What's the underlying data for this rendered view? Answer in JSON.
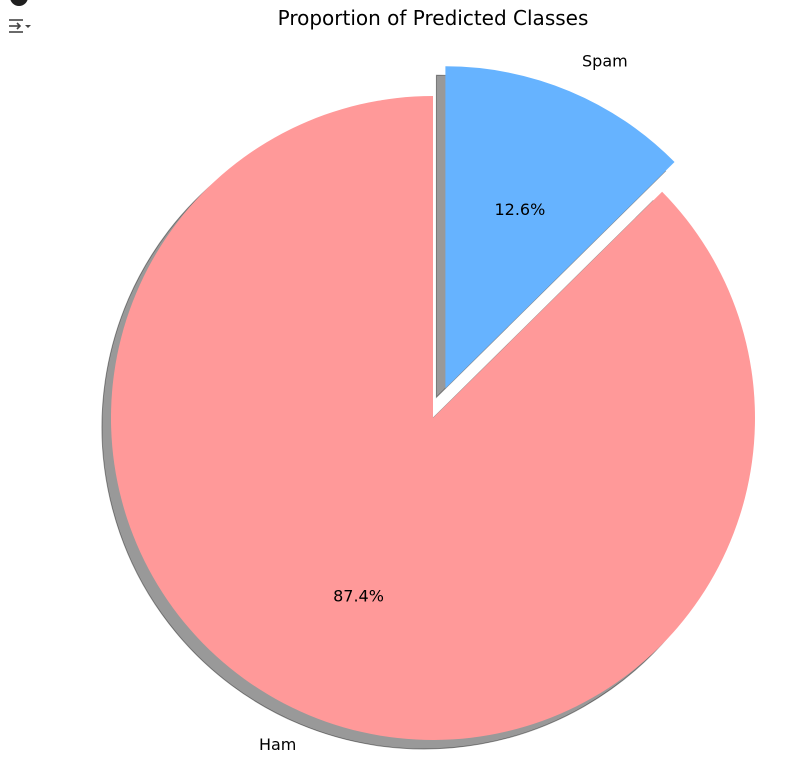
{
  "notebook": {
    "output_toggle_icon": "output-toggle-icon",
    "run_indicator_icon": "run-indicator-icon"
  },
  "chart_data": {
    "type": "pie",
    "title": "Proportion of Predicted Classes",
    "categories": [
      "Ham",
      "Spam"
    ],
    "values": [
      87.4,
      12.6
    ],
    "labels": [
      "Ham",
      "Spam"
    ],
    "percent_labels": [
      "87.4%",
      "12.6%"
    ],
    "colors": [
      "#ff9999",
      "#66b3ff"
    ],
    "explode": [
      0,
      0.1
    ],
    "shadow": true,
    "legend": "none"
  }
}
